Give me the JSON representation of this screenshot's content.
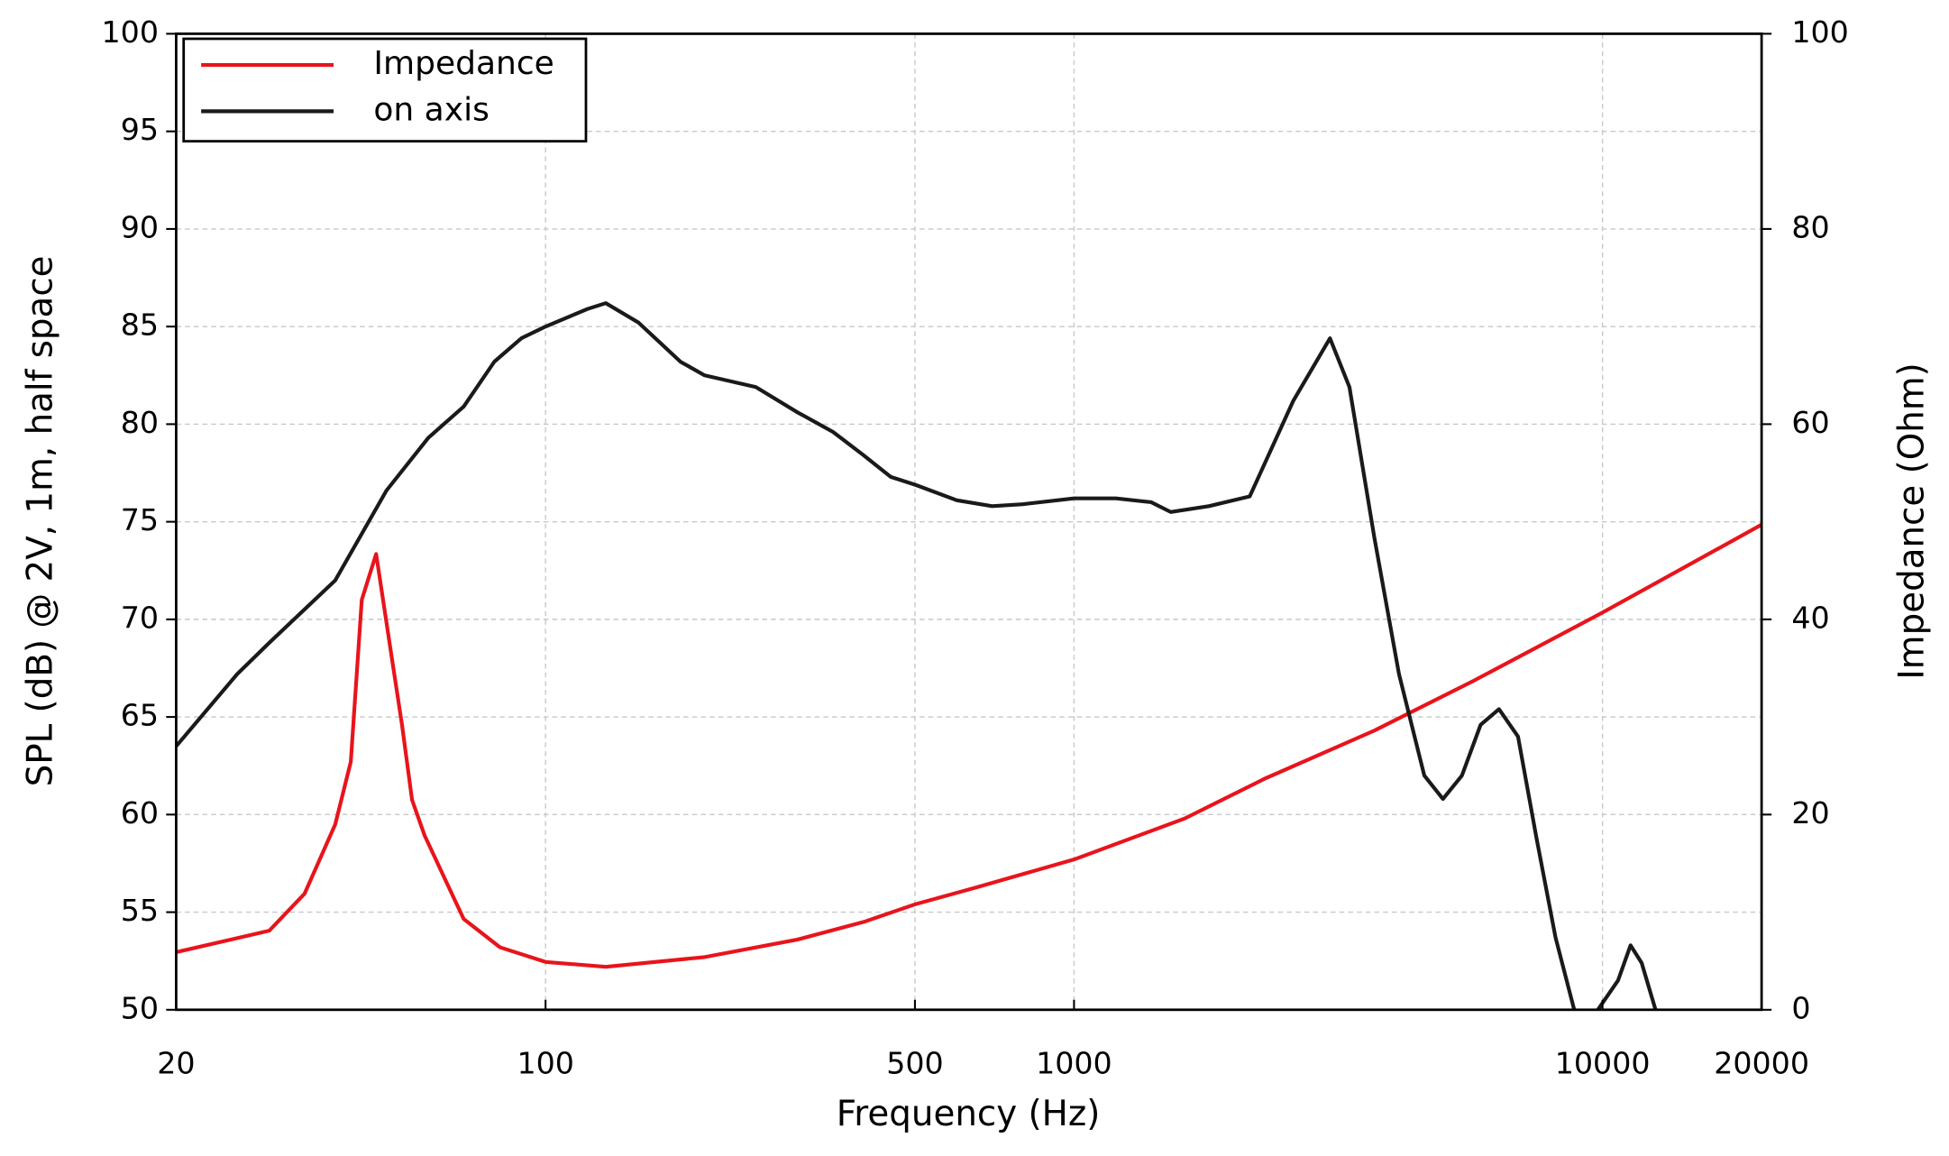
{
  "chart_data": {
    "type": "line",
    "xlabel": "Frequency (Hz)",
    "ylabel": "SPL (dB) @ 2V, 1m, half space",
    "y2label": "Impedance (Ohm)",
    "xscale": "log",
    "xlim": [
      20,
      20000
    ],
    "xticks": [
      20,
      100,
      500,
      1000,
      10000,
      20000
    ],
    "ylim": [
      50,
      100
    ],
    "yticks": [
      50,
      55,
      60,
      65,
      70,
      75,
      80,
      85,
      90,
      95,
      100
    ],
    "y2lim": [
      0,
      100
    ],
    "y2ticks": [
      0,
      20,
      40,
      60,
      80,
      100
    ],
    "grid": true,
    "legend": "upper left",
    "series": [
      {
        "name": "Impedance",
        "color": "#e8141c",
        "axis": "y2",
        "x": [
          20,
          30,
          35,
          40,
          42.8,
          44.9,
          47.8,
          50.9,
          53.5,
          55.9,
          59,
          64,
          70,
          82,
          100,
          130,
          200,
          300,
          400,
          500,
          650,
          1000,
          1620,
          2300,
          3700,
          5700,
          10000,
          20000
        ],
        "values": [
          5.9,
          8.1,
          11.9,
          19,
          25.4,
          42,
          46.7,
          36.9,
          29.2,
          21.5,
          17.9,
          13.8,
          9.3,
          6.4,
          4.9,
          4.4,
          5.4,
          7.2,
          9.0,
          10.8,
          12.5,
          15.4,
          19.6,
          23.7,
          28.6,
          33.7,
          40.7,
          49.7
        ]
      },
      {
        "name": "on axis",
        "color": "#1a1a1a",
        "x": [
          20,
          26.1,
          30,
          40,
          50,
          60,
          70,
          80,
          90,
          100,
          120,
          130,
          150,
          180,
          200,
          250,
          300,
          350,
          400,
          450,
          500,
          600,
          700,
          800,
          1000,
          1200,
          1400,
          1524,
          1800,
          2150,
          2600,
          3050,
          3320,
          3700,
          4120,
          4600,
          4990,
          5420,
          5880,
          6370,
          6920,
          7500,
          8150,
          8840,
          9300,
          9800,
          10700,
          11300,
          11860,
          12600
        ],
        "values": [
          63.5,
          67.2,
          68.8,
          72.0,
          76.6,
          79.3,
          80.9,
          83.2,
          84.4,
          85.0,
          85.9,
          86.2,
          85.2,
          83.2,
          82.5,
          81.9,
          80.6,
          79.6,
          78.4,
          77.3,
          76.9,
          76.1,
          75.8,
          75.9,
          76.2,
          76.2,
          76.0,
          75.5,
          75.8,
          76.3,
          81.2,
          84.4,
          81.9,
          74.2,
          67.2,
          62.0,
          60.8,
          62.0,
          64.6,
          65.4,
          64.0,
          58.8,
          53.7,
          50,
          null,
          50,
          51.5,
          53.3,
          52.4,
          50
        ]
      }
    ]
  }
}
